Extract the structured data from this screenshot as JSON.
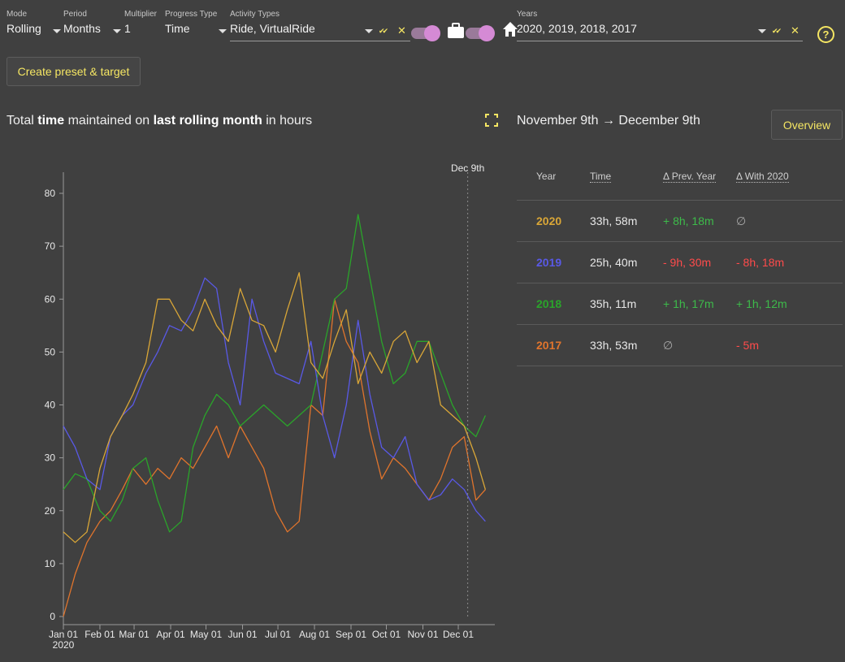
{
  "toolbar": {
    "mode": {
      "label": "Mode",
      "value": "Rolling"
    },
    "period": {
      "label": "Period",
      "value": "Months"
    },
    "multiplier": {
      "label": "Multiplier",
      "value": "1"
    },
    "progress_type": {
      "label": "Progress Type",
      "value": "Time"
    },
    "activity_types": {
      "label": "Activity Types",
      "value": "Ride, VirtualRide"
    },
    "years": {
      "label": "Years",
      "value": "2020, 2019, 2018, 2017"
    },
    "select_all_symbol": "✔✔",
    "clear_symbol": "✕",
    "help_symbol": "?"
  },
  "create_preset_label": "Create preset & target",
  "chart_title": {
    "pre": "Total ",
    "b1": "time",
    "mid": " maintained on ",
    "b2": "last rolling month",
    "post": " in hours"
  },
  "date_range": {
    "from": "November 9th",
    "arrow": "→",
    "to": "December 9th"
  },
  "overview_label": "Overview",
  "table": {
    "headers": [
      "Year",
      "Time",
      "Δ Prev. Year",
      "Δ With 2020"
    ],
    "rows": [
      {
        "year": "2020",
        "time": "33h, 58m",
        "prev": "+ 8h, 18m",
        "with": "∅"
      },
      {
        "year": "2019",
        "time": "25h, 40m",
        "prev": "- 9h, 30m",
        "with": "- 8h, 18m"
      },
      {
        "year": "2018",
        "time": "35h, 11m",
        "prev": "+ 1h, 17m",
        "with": "+ 1h, 12m"
      },
      {
        "year": "2017",
        "time": "33h, 53m",
        "prev": "∅",
        "with": "- 5m"
      }
    ]
  },
  "colors": {
    "2020": "#d9a637",
    "2019": "#5959e6",
    "2018": "#2aa42a",
    "2017": "#e0742c",
    "accent": "#f5e663",
    "toggle": "#d58ad5"
  },
  "chart_data": {
    "type": "line",
    "ylim": [
      0,
      80
    ],
    "yticks": [
      0,
      10,
      20,
      30,
      40,
      50,
      60,
      70,
      80
    ],
    "xticks": [
      "Jan 01",
      "Feb 01",
      "Mar 01",
      "Apr 01",
      "May 01",
      "Jun 01",
      "Jul 01",
      "Aug 01",
      "Sep 01",
      "Oct 01",
      "Nov 01",
      "Dec 01"
    ],
    "year_label": "2020",
    "marker_label": "Dec 9th",
    "x_unit": "day of year",
    "marker_day": 343,
    "series": [
      {
        "name": "2020",
        "x": [
          0,
          10,
          20,
          31,
          40,
          50,
          59,
          70,
          80,
          90,
          100,
          110,
          120,
          130,
          140,
          150,
          160,
          170,
          180,
          190,
          200,
          210,
          220,
          230,
          240,
          250,
          260,
          270,
          280,
          290,
          300,
          310,
          320,
          330,
          340,
          350,
          358
        ],
        "y": [
          16,
          14,
          16,
          28,
          34,
          38,
          42,
          48,
          60,
          60,
          56,
          54,
          60,
          55,
          52,
          62,
          56,
          55,
          50,
          58,
          65,
          48,
          45,
          52,
          58,
          44,
          50,
          46,
          52,
          54,
          48,
          52,
          40,
          38,
          36,
          30,
          24
        ]
      },
      {
        "name": "2019",
        "x": [
          0,
          10,
          20,
          31,
          40,
          50,
          59,
          70,
          80,
          90,
          100,
          110,
          120,
          130,
          140,
          150,
          160,
          170,
          180,
          190,
          200,
          210,
          220,
          230,
          240,
          250,
          260,
          270,
          280,
          290,
          300,
          310,
          320,
          330,
          340,
          350,
          358
        ],
        "y": [
          36,
          32,
          26,
          24,
          34,
          38,
          40,
          46,
          50,
          55,
          54,
          58,
          64,
          62,
          48,
          40,
          60,
          52,
          46,
          45,
          44,
          52,
          38,
          30,
          40,
          56,
          42,
          32,
          30,
          34,
          25,
          22,
          23,
          26,
          24,
          20,
          18
        ]
      },
      {
        "name": "2018",
        "x": [
          0,
          10,
          20,
          31,
          40,
          50,
          59,
          70,
          80,
          90,
          100,
          110,
          120,
          130,
          140,
          150,
          160,
          170,
          180,
          190,
          200,
          210,
          220,
          230,
          240,
          250,
          260,
          270,
          280,
          290,
          300,
          310,
          320,
          330,
          340,
          350,
          358
        ],
        "y": [
          24,
          27,
          26,
          20,
          18,
          22,
          28,
          30,
          22,
          16,
          18,
          32,
          38,
          42,
          40,
          36,
          38,
          40,
          38,
          36,
          38,
          40,
          50,
          60,
          62,
          76,
          64,
          52,
          44,
          46,
          52,
          52,
          46,
          40,
          36,
          34,
          38
        ]
      },
      {
        "name": "2017",
        "x": [
          0,
          10,
          20,
          31,
          40,
          50,
          59,
          70,
          80,
          90,
          100,
          110,
          120,
          130,
          140,
          150,
          160,
          170,
          180,
          190,
          200,
          210,
          220,
          230,
          240,
          250,
          260,
          270,
          280,
          290,
          300,
          310,
          320,
          330,
          340,
          350,
          358
        ],
        "y": [
          0,
          8,
          14,
          18,
          20,
          24,
          28,
          25,
          28,
          26,
          30,
          28,
          32,
          36,
          30,
          36,
          32,
          28,
          20,
          16,
          18,
          40,
          38,
          60,
          52,
          48,
          35,
          26,
          30,
          28,
          25,
          22,
          26,
          32,
          34,
          22,
          24
        ]
      }
    ]
  }
}
